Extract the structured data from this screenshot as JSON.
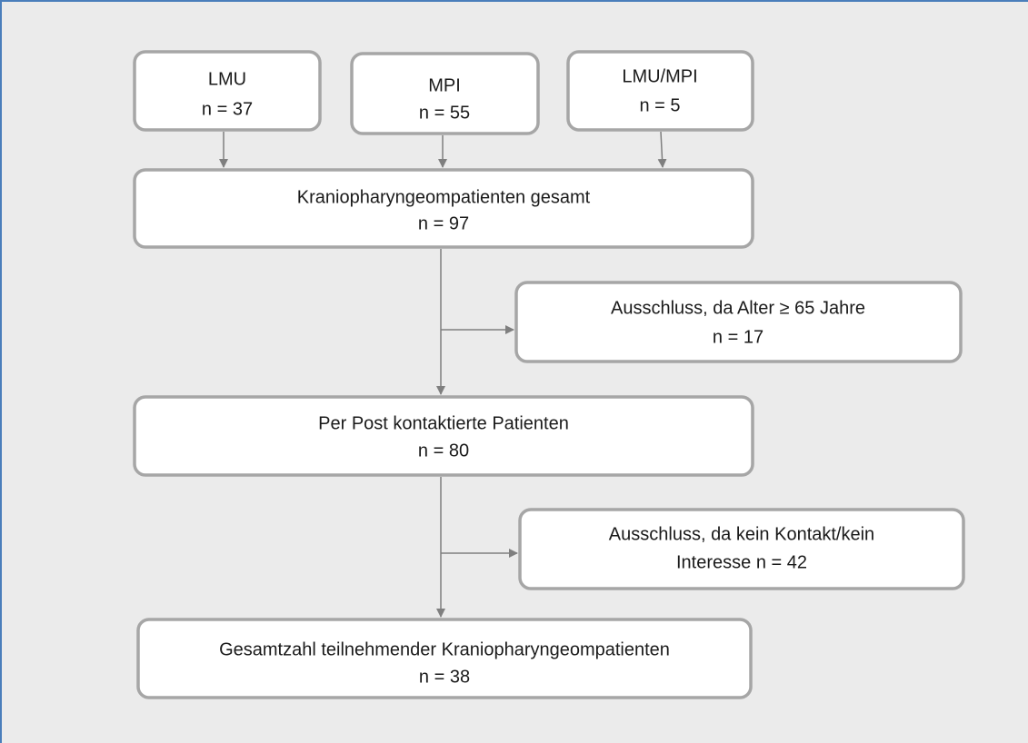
{
  "nodes": [
    {
      "lines": [
        "LMU",
        "n = 37"
      ]
    },
    {
      "lines": [
        "MPI",
        "n = 55"
      ]
    },
    {
      "lines": [
        "LMU/MPI",
        "n = 5"
      ]
    },
    {
      "lines": [
        "Kraniopharyngeompatienten gesamt",
        "n = 97"
      ]
    },
    {
      "lines": [
        "Ausschluss, da Alter ≥ 65 Jahre",
        "n = 17"
      ]
    },
    {
      "lines": [
        "Per Post kontaktierte Patienten",
        "n = 80"
      ]
    },
    {
      "lines": [
        "Ausschluss, da kein Kontakt/kein",
        "Interesse n = 42"
      ]
    },
    {
      "lines": [
        "Gesamtzahl teilnehmender Kraniopharyngeompatienten",
        "n = 38"
      ]
    }
  ]
}
